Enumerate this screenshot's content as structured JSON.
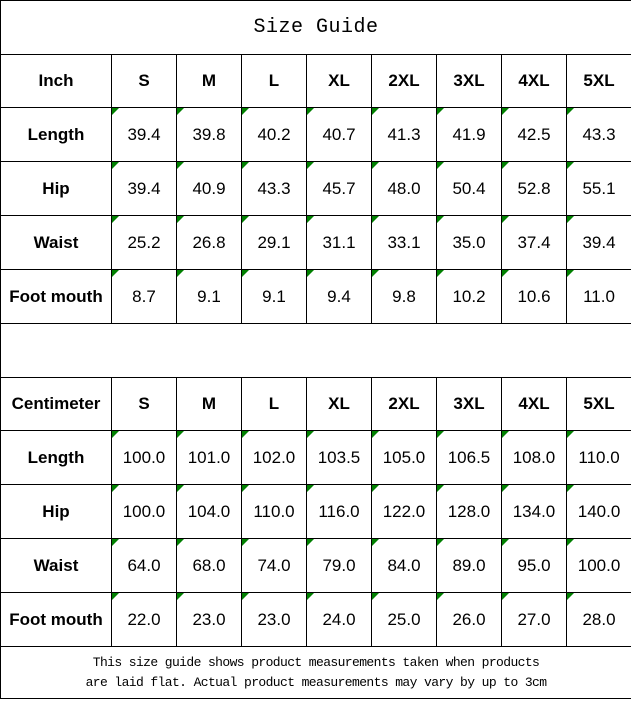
{
  "page": {
    "title": "Size Guide",
    "footer_line1": "This size guide shows product measurements taken when products",
    "footer_line2": "are laid flat. Actual product measurements may vary by up to 3cm"
  },
  "colors": {
    "border": "#000000",
    "text": "#000000",
    "background": "#ffffff",
    "cell_marker_green": "#008000"
  },
  "tables": [
    {
      "unit_label": "Inch",
      "size_headers": [
        "S",
        "M",
        "L",
        "XL",
        "2XL",
        "3XL",
        "4XL",
        "5XL"
      ],
      "rows": [
        {
          "label": "Length",
          "values": [
            "39.4",
            "39.8",
            "40.2",
            "40.7",
            "41.3",
            "41.9",
            "42.5",
            "43.3"
          ]
        },
        {
          "label": "Hip",
          "values": [
            "39.4",
            "40.9",
            "43.3",
            "45.7",
            "48.0",
            "50.4",
            "52.8",
            "55.1"
          ]
        },
        {
          "label": "Waist",
          "values": [
            "25.2",
            "26.8",
            "29.1",
            "31.1",
            "33.1",
            "35.0",
            "37.4",
            "39.4"
          ]
        },
        {
          "label": "Foot mouth",
          "values": [
            "8.7",
            "9.1",
            "9.1",
            "9.4",
            "9.8",
            "10.2",
            "10.6",
            "11.0"
          ]
        }
      ]
    },
    {
      "unit_label": "Centimeter",
      "size_headers": [
        "S",
        "M",
        "L",
        "XL",
        "2XL",
        "3XL",
        "4XL",
        "5XL"
      ],
      "rows": [
        {
          "label": "Length",
          "values": [
            "100.0",
            "101.0",
            "102.0",
            "103.5",
            "105.0",
            "106.5",
            "108.0",
            "110.0"
          ]
        },
        {
          "label": "Hip",
          "values": [
            "100.0",
            "104.0",
            "110.0",
            "116.0",
            "122.0",
            "128.0",
            "134.0",
            "140.0"
          ]
        },
        {
          "label": "Waist",
          "values": [
            "64.0",
            "68.0",
            "74.0",
            "79.0",
            "84.0",
            "89.0",
            "95.0",
            "100.0"
          ]
        },
        {
          "label": "Foot mouth",
          "values": [
            "22.0",
            "23.0",
            "23.0",
            "24.0",
            "25.0",
            "26.0",
            "27.0",
            "28.0"
          ]
        }
      ]
    }
  ]
}
